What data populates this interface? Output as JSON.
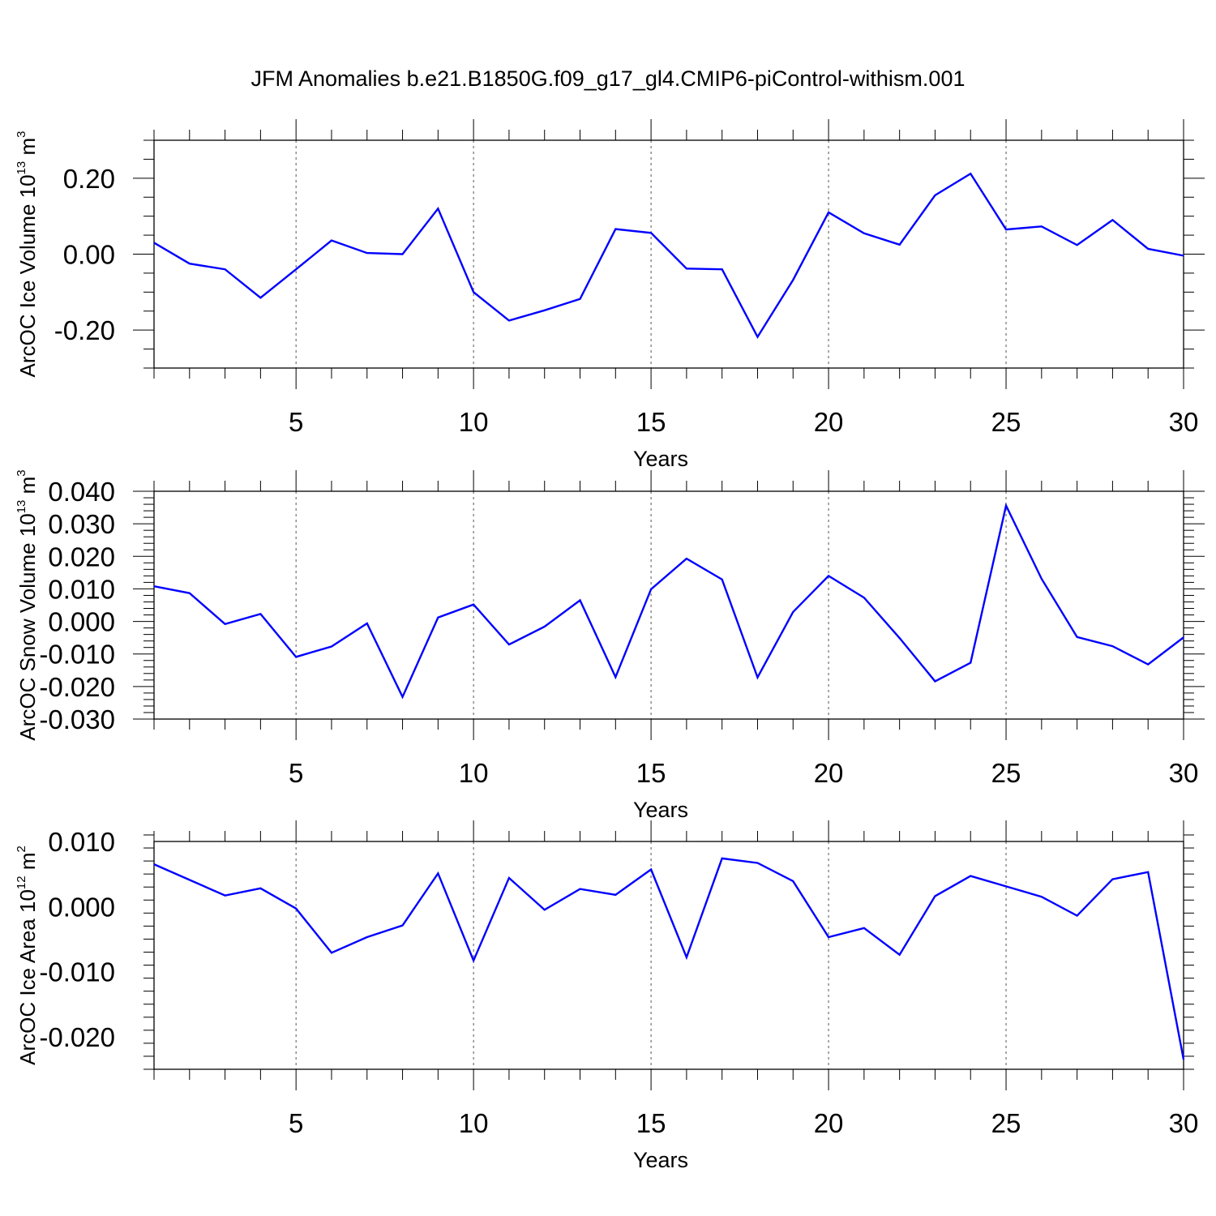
{
  "figure": {
    "title": "JFM Anomalies b.e21.B1850G.f09_g17_gl4.CMIP6-piControl-withism.001",
    "line_color": "#0000ff"
  },
  "chart_data": [
    {
      "type": "line",
      "ylabel": {
        "text": "ArcOC Ice Volume 10",
        "exp": "13",
        "unit": " m",
        "unit_exp": "3"
      },
      "xlabel": "Years",
      "xlim": [
        1,
        30
      ],
      "ylim": [
        -0.3,
        0.3
      ],
      "x_ticks": [
        5,
        10,
        15,
        20,
        25,
        30
      ],
      "y_ticks": [
        -0.2,
        0.0,
        0.2
      ],
      "y_tick_labels": [
        "-0.20",
        "0.00",
        "0.20"
      ],
      "y_minor_step": 0.05,
      "grid": "vertical dashed at major x ticks",
      "series": [
        {
          "x": [
            1,
            2,
            3,
            4,
            5,
            6,
            7,
            8,
            9,
            10,
            11,
            12,
            13,
            14,
            15,
            16,
            17,
            18,
            19,
            20,
            21,
            22,
            23,
            24,
            25,
            26,
            27,
            28,
            29,
            30
          ],
          "values": [
            0.03,
            -0.025,
            -0.04,
            -0.115,
            -0.04,
            0.036,
            0.003,
            0.0,
            0.12,
            -0.1,
            -0.175,
            -0.148,
            -0.118,
            0.066,
            0.056,
            -0.038,
            -0.04,
            -0.218,
            -0.068,
            0.11,
            0.055,
            0.025,
            0.155,
            0.212,
            0.065,
            0.073,
            0.024,
            0.09,
            0.014,
            -0.004
          ]
        }
      ]
    },
    {
      "type": "line",
      "ylabel": {
        "text": "ArcOC Snow Volume 10",
        "exp": "13",
        "unit": " m",
        "unit_exp": "3"
      },
      "xlabel": "Years",
      "xlim": [
        1,
        30
      ],
      "ylim": [
        -0.03,
        0.04
      ],
      "x_ticks": [
        5,
        10,
        15,
        20,
        25,
        30
      ],
      "y_ticks": [
        -0.03,
        -0.02,
        -0.01,
        0.0,
        0.01,
        0.02,
        0.03,
        0.04
      ],
      "y_tick_labels": [
        "-0.030",
        "-0.020",
        "-0.010",
        "0.000",
        "0.010",
        "0.020",
        "0.030",
        "0.040"
      ],
      "y_minor_step": 0.002,
      "grid": "vertical dashed at major x ticks",
      "series": [
        {
          "x": [
            1,
            2,
            3,
            4,
            5,
            6,
            7,
            8,
            9,
            10,
            11,
            12,
            13,
            14,
            15,
            16,
            17,
            18,
            19,
            20,
            21,
            22,
            23,
            24,
            25,
            26,
            27,
            28,
            29,
            30
          ],
          "values": [
            0.0108,
            0.0087,
            -0.0008,
            0.0023,
            -0.0109,
            -0.0077,
            -0.0006,
            -0.0232,
            0.0012,
            0.0052,
            -0.0071,
            -0.0016,
            0.0065,
            -0.0171,
            0.0099,
            0.0193,
            0.0129,
            -0.0172,
            0.0029,
            0.014,
            0.0073,
            -0.0051,
            -0.0184,
            -0.0127,
            0.0356,
            0.0131,
            -0.0048,
            -0.0076,
            -0.0132,
            -0.0049
          ]
        }
      ]
    },
    {
      "type": "line",
      "ylabel": {
        "text": "ArcOC Ice Area 10",
        "exp": "12",
        "unit": " m",
        "unit_exp": "2"
      },
      "xlabel": "Years",
      "xlim": [
        1,
        30
      ],
      "ylim": [
        -0.025,
        0.01
      ],
      "x_ticks": [
        5,
        10,
        15,
        20,
        25,
        30
      ],
      "y_ticks": [
        -0.02,
        -0.01,
        0.0,
        0.01
      ],
      "y_tick_labels": [
        "-0.020",
        "-0.010",
        "0.000",
        "0.010"
      ],
      "y_minor_step": 0.002,
      "grid": "vertical dashed at major x ticks",
      "series": [
        {
          "x": [
            1,
            2,
            3,
            4,
            5,
            6,
            7,
            8,
            9,
            10,
            11,
            12,
            13,
            14,
            15,
            16,
            17,
            18,
            19,
            20,
            21,
            22,
            23,
            24,
            25,
            26,
            27,
            28,
            29,
            30
          ],
          "values": [
            0.0065,
            0.0041,
            0.0017,
            0.0028,
            -0.0003,
            -0.0071,
            -0.0047,
            -0.0029,
            0.0051,
            -0.0083,
            0.0044,
            -0.0005,
            0.0027,
            0.0018,
            0.0057,
            -0.0078,
            0.0074,
            0.0067,
            0.0039,
            -0.0047,
            -0.0033,
            -0.0074,
            0.0016,
            0.0047,
            0.0031,
            0.0015,
            -0.0014,
            0.0042,
            0.0053,
            -0.0235
          ]
        }
      ]
    }
  ]
}
